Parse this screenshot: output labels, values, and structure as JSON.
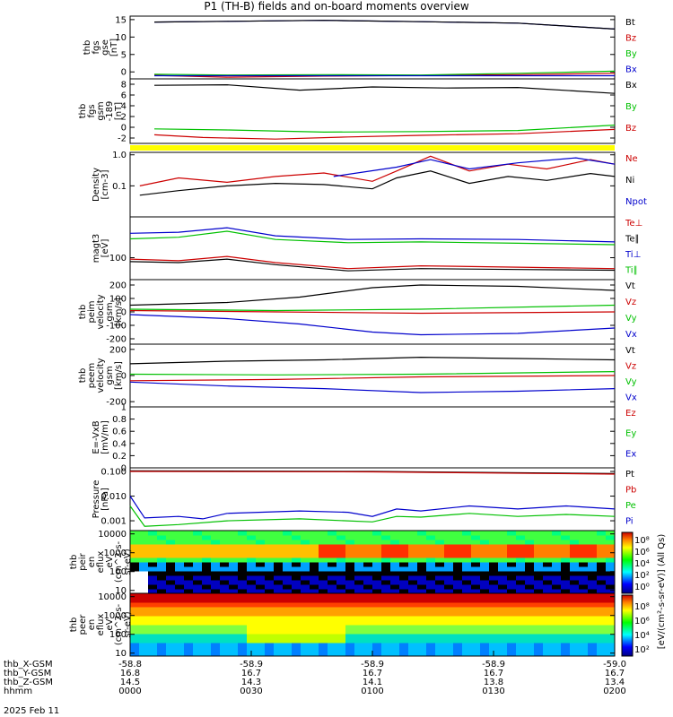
{
  "title": "P1 (TH-B) fields and on-board moments overview",
  "colors": {
    "black": "#000000",
    "red": "#cc0000",
    "green": "#00c000",
    "blue": "#0000cc",
    "yellow": "#ffff00"
  },
  "chart_data": [
    {
      "type": "line",
      "id": "fgs_gse",
      "ylabel": [
        "thb",
        "fgs",
        "gse",
        "[nT]"
      ],
      "ylim": [
        -2,
        16
      ],
      "yticks": [
        15,
        10,
        5,
        0
      ],
      "legend": [
        "Bt",
        "Bz",
        "By",
        "Bx"
      ],
      "series": [
        {
          "name": "Bt",
          "color": "blue",
          "x": [
            0.05,
            0.2,
            0.4,
            0.6,
            0.8,
            1.0
          ],
          "y": [
            14.3,
            14.5,
            14.8,
            14.4,
            14.0,
            12.3
          ]
        },
        {
          "name": "Bt",
          "color": "black",
          "x": [
            0.05,
            0.2,
            0.4,
            0.6,
            0.8,
            1.0
          ],
          "y": [
            14.3,
            14.5,
            14.8,
            14.4,
            14.0,
            12.3
          ]
        },
        {
          "name": "Bz",
          "color": "red",
          "x": [
            0.05,
            0.2,
            0.4,
            0.6,
            0.8,
            1.0
          ],
          "y": [
            -1.0,
            -1.5,
            -1.2,
            -1.0,
            -0.8,
            -0.4
          ]
        },
        {
          "name": "By",
          "color": "green",
          "x": [
            0.05,
            0.2,
            0.4,
            0.6,
            0.8,
            1.0
          ],
          "y": [
            -0.7,
            -0.9,
            -0.8,
            -0.9,
            -0.4,
            0.2
          ]
        },
        {
          "name": "Bx",
          "color": "blue",
          "x": [
            0.05,
            1.0
          ],
          "y": [
            -1.1,
            -1.1
          ]
        }
      ]
    },
    {
      "type": "line",
      "id": "fgs_gsm",
      "ylabel": [
        "thb",
        "fgs",
        "gsm",
        "-189",
        "[nT]"
      ],
      "ylim": [
        -3,
        9
      ],
      "yticks": [
        8,
        6,
        4,
        2,
        0,
        -2
      ],
      "legend": [
        "Bx",
        "By",
        "Bz"
      ],
      "series": [
        {
          "name": "Bx",
          "color": "black",
          "x": [
            0.05,
            0.2,
            0.35,
            0.5,
            0.65,
            0.8,
            1.0
          ],
          "y": [
            7.8,
            7.9,
            6.9,
            7.5,
            7.3,
            7.4,
            6.3
          ]
        },
        {
          "name": "By",
          "color": "green",
          "x": [
            0.05,
            0.2,
            0.4,
            0.6,
            0.8,
            1.0
          ],
          "y": [
            -0.3,
            -0.5,
            -0.9,
            -0.8,
            -0.6,
            0.4
          ]
        },
        {
          "name": "Bz",
          "color": "red",
          "x": [
            0.05,
            0.15,
            0.3,
            0.45,
            0.6,
            0.8,
            1.0
          ],
          "y": [
            -1.4,
            -1.9,
            -2.2,
            -1.8,
            -1.5,
            -1.2,
            -0.4
          ]
        }
      ]
    },
    {
      "type": "line",
      "id": "density",
      "yscale": "log",
      "ylabel": [
        "Density",
        "[cm-3]"
      ],
      "ylim": [
        0.01,
        1.2
      ],
      "yticks": [
        1.0,
        0.1
      ],
      "ytick_labels": [
        "1.0",
        "0.1"
      ],
      "legend": [
        "Ne",
        "Ni",
        "Npot"
      ],
      "series": [
        {
          "name": "Ne",
          "color": "red",
          "x": [
            0.02,
            0.1,
            0.2,
            0.3,
            0.4,
            0.5,
            0.55,
            0.62,
            0.7,
            0.78,
            0.86,
            0.95,
            1.0
          ],
          "y": [
            0.1,
            0.18,
            0.13,
            0.2,
            0.26,
            0.14,
            0.3,
            0.9,
            0.3,
            0.5,
            0.35,
            0.7,
            0.5
          ]
        },
        {
          "name": "Ni",
          "color": "black",
          "x": [
            0.02,
            0.1,
            0.2,
            0.3,
            0.4,
            0.5,
            0.55,
            0.62,
            0.7,
            0.78,
            0.86,
            0.95,
            1.0
          ],
          "y": [
            0.05,
            0.07,
            0.1,
            0.12,
            0.11,
            0.08,
            0.18,
            0.3,
            0.12,
            0.2,
            0.15,
            0.25,
            0.2
          ]
        },
        {
          "name": "Npot",
          "color": "blue",
          "x": [
            0.42,
            0.55,
            0.62,
            0.7,
            0.8,
            0.92,
            1.0
          ],
          "y": [
            0.2,
            0.4,
            0.7,
            0.35,
            0.55,
            0.8,
            0.5
          ]
        }
      ]
    },
    {
      "type": "line",
      "id": "temperature",
      "yscale": "log",
      "ylabel": [
        "magt3",
        "[eV]"
      ],
      "ylim": [
        20,
        2000
      ],
      "yticks": [
        100
      ],
      "ytick_labels": [
        "100"
      ],
      "legend": [
        "Te⊥",
        "Te∥",
        "Ti⊥",
        "Ti∥"
      ],
      "series": [
        {
          "name": "Ti∥",
          "color": "green",
          "x": [
            0.0,
            0.1,
            0.2,
            0.3,
            0.45,
            0.6,
            0.8,
            1.0
          ],
          "y": [
            400,
            450,
            700,
            380,
            300,
            320,
            290,
            260
          ]
        },
        {
          "name": "Ti⊥",
          "color": "blue",
          "x": [
            0.0,
            0.1,
            0.2,
            0.3,
            0.45,
            0.6,
            0.8,
            1.0
          ],
          "y": [
            600,
            650,
            900,
            500,
            380,
            400,
            380,
            320
          ]
        },
        {
          "name": "Te⊥",
          "color": "red",
          "x": [
            0.0,
            0.1,
            0.2,
            0.3,
            0.45,
            0.6,
            0.8,
            1.0
          ],
          "y": [
            90,
            80,
            110,
            70,
            45,
            55,
            50,
            45
          ]
        },
        {
          "name": "Te∥",
          "color": "black",
          "x": [
            0.0,
            0.1,
            0.2,
            0.3,
            0.45,
            0.6,
            0.8,
            1.0
          ],
          "y": [
            75,
            70,
            90,
            60,
            38,
            45,
            42,
            40
          ]
        }
      ]
    },
    {
      "type": "line",
      "id": "peim",
      "ylabel": [
        "thb",
        "peim",
        "velocity",
        "gsm",
        "[km/s]"
      ],
      "ylim": [
        -240,
        240
      ],
      "yticks": [
        200,
        100,
        0,
        -100,
        -200
      ],
      "legend": [
        "Vt",
        "Vz",
        "Vy",
        "Vx"
      ],
      "series": [
        {
          "name": "Vt",
          "color": "black",
          "x": [
            0.0,
            0.2,
            0.35,
            0.5,
            0.6,
            0.8,
            1.0
          ],
          "y": [
            50,
            70,
            110,
            180,
            200,
            190,
            160
          ]
        },
        {
          "name": "Vz",
          "color": "red",
          "x": [
            0.0,
            0.3,
            0.6,
            1.0
          ],
          "y": [
            10,
            0,
            -10,
            0
          ]
        },
        {
          "name": "Vy",
          "color": "green",
          "x": [
            0.0,
            0.3,
            0.6,
            1.0
          ],
          "y": [
            20,
            10,
            20,
            50
          ]
        },
        {
          "name": "Vx",
          "color": "blue",
          "x": [
            0.0,
            0.2,
            0.35,
            0.5,
            0.6,
            0.8,
            1.0
          ],
          "y": [
            -20,
            -50,
            -90,
            -150,
            -170,
            -160,
            -120
          ]
        }
      ]
    },
    {
      "type": "line",
      "id": "peem",
      "ylabel": [
        "thb",
        "peem",
        "velocity",
        "gsm",
        "[km/s]"
      ],
      "ylim": [
        -240,
        240
      ],
      "yticks": [
        200,
        0,
        -200
      ],
      "legend": [
        "Vt",
        "Vz",
        "Vy",
        "Vx"
      ],
      "series": [
        {
          "name": "Vt",
          "color": "black",
          "x": [
            0.0,
            0.2,
            0.4,
            0.6,
            0.8,
            1.0
          ],
          "y": [
            90,
            110,
            120,
            140,
            130,
            120
          ]
        },
        {
          "name": "Vz",
          "color": "red",
          "x": [
            0.0,
            0.3,
            0.6,
            1.0
          ],
          "y": [
            -40,
            -30,
            -10,
            0
          ]
        },
        {
          "name": "Vy",
          "color": "green",
          "x": [
            0.0,
            0.3,
            0.6,
            1.0
          ],
          "y": [
            10,
            5,
            10,
            30
          ]
        },
        {
          "name": "Vx",
          "color": "blue",
          "x": [
            0.0,
            0.2,
            0.4,
            0.6,
            0.8,
            1.0
          ],
          "y": [
            -50,
            -80,
            -100,
            -130,
            -120,
            -100
          ]
        }
      ]
    },
    {
      "type": "line",
      "id": "efield",
      "ylabel": [
        "E=-VxB",
        "[mV/m]"
      ],
      "ylim": [
        0.0,
        1.0
      ],
      "yticks": [
        1.0,
        0.8,
        0.6,
        0.4,
        0.2,
        0.0
      ],
      "legend": [
        "Ez",
        "Ey",
        "Ex"
      ],
      "series": []
    },
    {
      "type": "line",
      "id": "pressure",
      "yscale": "log",
      "ylabel": [
        "Pressure",
        "[nPa]"
      ],
      "ylim": [
        0.0004,
        0.14
      ],
      "yticks": [
        0.1,
        0.01,
        0.001
      ],
      "ytick_labels": [
        "0.100",
        "0.010",
        "0.001"
      ],
      "legend": [
        "Pt",
        "Pb",
        "Pe",
        "Pi"
      ],
      "series": [
        {
          "name": "Pt",
          "color": "black",
          "x": [
            0.0,
            0.5,
            1.0
          ],
          "y": [
            0.105,
            0.1,
            0.082
          ]
        },
        {
          "name": "Pb",
          "color": "red",
          "x": [
            0.0,
            0.5,
            1.0
          ],
          "y": [
            0.1,
            0.096,
            0.078
          ]
        },
        {
          "name": "Pi",
          "color": "blue",
          "x": [
            0.0,
            0.03,
            0.1,
            0.15,
            0.2,
            0.35,
            0.45,
            0.5,
            0.55,
            0.6,
            0.7,
            0.8,
            0.9,
            1.0
          ],
          "y": [
            0.01,
            0.0013,
            0.0015,
            0.0012,
            0.002,
            0.0025,
            0.0022,
            0.0015,
            0.003,
            0.0025,
            0.004,
            0.003,
            0.004,
            0.003
          ]
        },
        {
          "name": "Pe",
          "color": "green",
          "x": [
            0.0,
            0.03,
            0.1,
            0.2,
            0.35,
            0.5,
            0.55,
            0.6,
            0.7,
            0.8,
            0.9,
            1.0
          ],
          "y": [
            0.004,
            0.0006,
            0.0007,
            0.001,
            0.0012,
            0.0009,
            0.0015,
            0.0014,
            0.002,
            0.0015,
            0.0018,
            0.0015
          ]
        }
      ]
    },
    {
      "type": "heatmap",
      "id": "peir",
      "ylabel": [
        "thb",
        "peir",
        "en",
        "eflux",
        "eV",
        "(cm^2-s-",
        "sr-eV)"
      ],
      "yscale": "log",
      "ylim": [
        7,
        15000
      ],
      "yticks": [
        10000,
        1000,
        100,
        10
      ],
      "ytick_labels": [
        "10000",
        "1000",
        "100",
        "10"
      ]
    },
    {
      "type": "heatmap",
      "id": "peer",
      "ylabel": [
        "thb",
        "peer",
        "en",
        "eflux",
        "eV",
        "(cm^2-s-",
        "sr-eV)"
      ],
      "yscale": "log",
      "ylim": [
        7,
        15000
      ],
      "yticks": [
        10000,
        1000,
        100,
        10
      ],
      "ytick_labels": [
        "10000",
        "1000",
        "100",
        "10"
      ]
    }
  ],
  "colorbar": {
    "ion_labels": [
      "10⁸",
      "10⁶",
      "10⁴",
      "10²",
      "10⁰"
    ],
    "electron_labels": [
      "10⁸",
      "10⁶",
      "10⁴",
      "10²"
    ],
    "title": "[eV/(cm²-s-sr-eV)] (All Qs)"
  },
  "x_axis": {
    "rows": [
      {
        "label": "thb_X-GSM",
        "values": [
          "-58.8",
          "-58.9",
          "-58.9",
          "-58.9",
          "-59.0"
        ]
      },
      {
        "label": "thb_Y-GSM",
        "values": [
          "16.8",
          "16.7",
          "16.7",
          "16.7",
          "16.7"
        ]
      },
      {
        "label": "thb_Z-GSM",
        "values": [
          "14.5",
          "14.3",
          "14.1",
          "13.8",
          "13.4"
        ]
      },
      {
        "label": "hhmm",
        "values": [
          "0000",
          "0030",
          "0100",
          "0130",
          "0200"
        ]
      }
    ],
    "date": "2025 Feb 11"
  }
}
